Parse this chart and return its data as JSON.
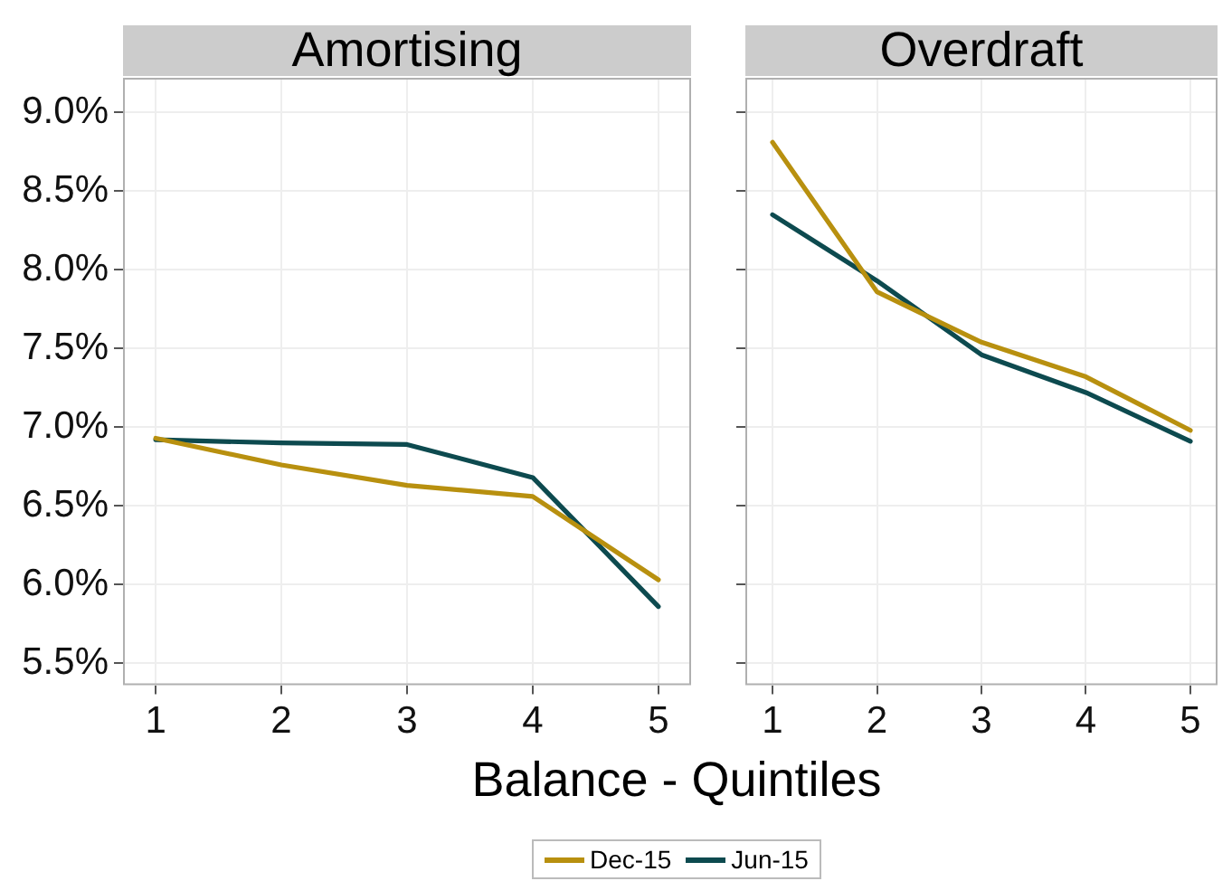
{
  "chart_data": [
    {
      "type": "line",
      "title": "Amortising",
      "xlabel": "Balance - Quintiles",
      "x": [
        1,
        2,
        3,
        4,
        5
      ],
      "xlim": [
        0.74,
        5.26
      ],
      "xticks": [
        1,
        2,
        3,
        4,
        5
      ],
      "ylim": [
        5.36,
        9.22
      ],
      "yticks": [
        {
          "value": 5.5,
          "label": "5.5%"
        },
        {
          "value": 6,
          "label": "6.0%"
        },
        {
          "value": 6.5,
          "label": "6.5%"
        },
        {
          "value": 7,
          "label": "7.0%"
        },
        {
          "value": 7.5,
          "label": "7.5%"
        },
        {
          "value": 8,
          "label": "8.0%"
        },
        {
          "value": 8.5,
          "label": "8.5%"
        },
        {
          "value": 9,
          "label": "9.0%"
        }
      ],
      "grid": true,
      "legend": "bottom",
      "marker": "none",
      "line_style": "solid",
      "series": [
        {
          "name": "Dec-15",
          "color": "#b8900f",
          "values": [
            6.93,
            6.76,
            6.63,
            6.56,
            6.03
          ]
        },
        {
          "name": "Jun-15",
          "color": "#0d4a4f",
          "values": [
            6.92,
            6.9,
            6.89,
            6.68,
            5.86
          ]
        }
      ]
    },
    {
      "type": "line",
      "title": "Overdraft",
      "x": [
        1,
        2,
        3,
        4,
        5
      ],
      "xlim": [
        0.74,
        5.26
      ],
      "xticks": [
        1,
        2,
        3,
        4,
        5
      ],
      "ylim": [
        5.36,
        9.22
      ],
      "yticks": [
        {
          "value": 5.5,
          "label": null
        },
        {
          "value": 6,
          "label": null
        },
        {
          "value": 6.5,
          "label": null
        },
        {
          "value": 7,
          "label": null
        },
        {
          "value": 7.5,
          "label": null
        },
        {
          "value": 8,
          "label": null
        },
        {
          "value": 8.5,
          "label": null
        },
        {
          "value": 9,
          "label": null
        }
      ],
      "grid": true,
      "tick_labels": "x",
      "marker": "none",
      "line_style": "solid",
      "series": [
        {
          "color": "#b8900f",
          "values": [
            8.81,
            7.86,
            7.54,
            7.32,
            6.98
          ]
        },
        {
          "color": "#0d4a4f",
          "values": [
            8.35,
            7.93,
            7.46,
            7.22,
            6.91
          ]
        }
      ]
    }
  ]
}
